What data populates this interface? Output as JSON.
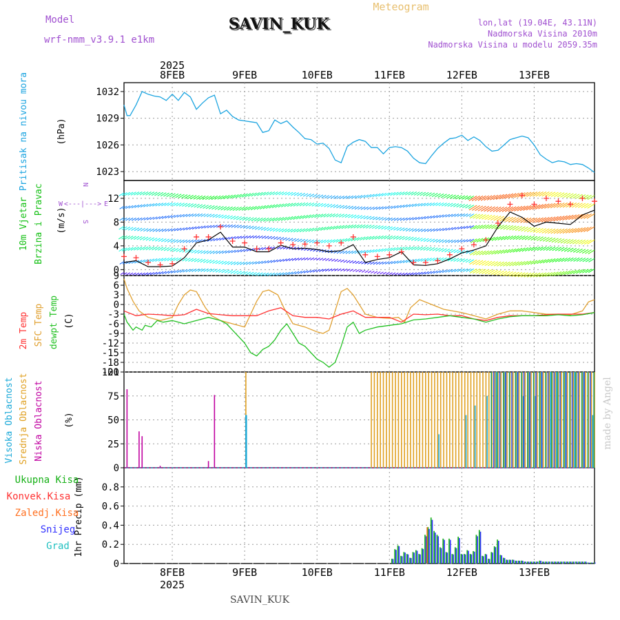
{
  "header": {
    "model_label": "Model",
    "model_value": "wrf-nmm_v3.9.1 e1km",
    "station": "SAVIN_KUK",
    "meteogram": "Meteogram",
    "lonlat": "lon,lat (19.04E, 43.11N)",
    "elevation": "Nadmorska Visina 2010m",
    "model_elevation": "Nadmorska Visina u modelu 2059.35m",
    "footer_station": "SAVIN_KUK",
    "credit": "made by Angel"
  },
  "colors": {
    "pressure": "#1ba4e0",
    "wind_axis": "#15c015",
    "temp2m": "#ff3030",
    "sfc": "#e0a030",
    "dew": "#20c020",
    "vis": "#19a8d8",
    "sred": "#e0a020",
    "nisk": "#c000a0",
    "ukupna": "#15b015",
    "konv": "#ff3030",
    "zaled": "#ff7020",
    "snijeg": "#3030ff",
    "grad": "#20c0c0",
    "credit": "#c8c8c8"
  },
  "chart_data": {
    "time_axis": {
      "year": "2025",
      "days": [
        "8FEB",
        "9FEB",
        "10FEB",
        "11FEB",
        "12FEB",
        "13FEB"
      ],
      "start_hour": -16,
      "end_hour": 140
    },
    "panels": [
      {
        "id": "pressure",
        "type": "line",
        "ylabel": "Pritisak na nivou mora",
        "unit": "(hPa)",
        "ylim": [
          1022,
          1033
        ],
        "yticks": [
          1023,
          1026,
          1029,
          1032
        ],
        "series": [
          {
            "key": "mslp",
            "x": [
              -16,
              -15,
              -14,
              -12,
              -10,
              -8,
              -6,
              -4,
              -2,
              0,
              2,
              4,
              6,
              8,
              10,
              12,
              14,
              16,
              18,
              20,
              22,
              24,
              26,
              28,
              30,
              32,
              34,
              36,
              38,
              40,
              42,
              44,
              46,
              48,
              50,
              52,
              54,
              56,
              58,
              60,
              62,
              64,
              66,
              68,
              70,
              72,
              74,
              76,
              78,
              80,
              82,
              84,
              86,
              88,
              90,
              92,
              94,
              96,
              98,
              100,
              102,
              104,
              106,
              108,
              110,
              112,
              114,
              116,
              118,
              120,
              122,
              124,
              126,
              128,
              130,
              132,
              134,
              136,
              138,
              140
            ],
            "y": [
              1030.5,
              1029.3,
              1029.3,
              1030.5,
              1032,
              1031.7,
              1031.5,
              1031.4,
              1031,
              1031.7,
              1031.0,
              1031.9,
              1031.4,
              1030.0,
              1030.7,
              1031.3,
              1031.6,
              1029.5,
              1029.9,
              1029.2,
              1028.8,
              1028.7,
              1028.6,
              1028.5,
              1027.4,
              1027.6,
              1028.8,
              1028.4,
              1028.7,
              1028.0,
              1027.4,
              1026.7,
              1026.6,
              1026.1,
              1026.2,
              1025.6,
              1024.3,
              1024.0,
              1025.8,
              1026.3,
              1026.6,
              1026.4,
              1025.7,
              1025.7,
              1025.0,
              1025.7,
              1025.8,
              1025.7,
              1025.3,
              1024.5,
              1024.0,
              1023.9,
              1024.8,
              1025.6,
              1026.2,
              1026.7,
              1026.8,
              1027.1,
              1026.5,
              1026.9,
              1026.5,
              1025.8,
              1025.3,
              1025.4,
              1026.0,
              1026.6,
              1026.8,
              1027.0,
              1026.8,
              1026.0,
              1024.9,
              1024.4,
              1024.0,
              1024.2,
              1024.1,
              1023.8,
              1023.9,
              1023.8,
              1023.4,
              1022.9
            ]
          }
        ]
      },
      {
        "id": "wind",
        "type": "line",
        "ylabel": [
          "10m Vjetar",
          "Brzina i Pravac"
        ],
        "unit": "(m/s)",
        "compass": [
          "N",
          "W",
          "<---|--->",
          "E",
          "S"
        ],
        "ylim": [
          -1,
          15
        ],
        "yticks": [
          0,
          4,
          8,
          12
        ],
        "series": [
          {
            "key": "speed",
            "x": [
              -16,
              -12,
              -8,
              -4,
              0,
              4,
              8,
              12,
              16,
              20,
              24,
              28,
              32,
              36,
              40,
              44,
              48,
              52,
              56,
              60,
              64,
              68,
              72,
              76,
              80,
              84,
              88,
              92,
              96,
              100,
              104,
              108,
              112,
              116,
              120,
              124,
              128,
              132,
              136,
              140
            ],
            "y": [
              1.2,
              1.5,
              0.5,
              0.5,
              0.6,
              2.0,
              4.5,
              5.0,
              6.3,
              3.8,
              3.8,
              3.0,
              3.0,
              4.1,
              3.5,
              3.6,
              3.4,
              3.0,
              3.2,
              4.2,
              1.2,
              1.7,
              2.0,
              3.0,
              0.8,
              0.7,
              1.0,
              1.8,
              2.8,
              3.3,
              4.0,
              7.2,
              9.7,
              8.8,
              7.3,
              8.0,
              7.8,
              7.6,
              9.2,
              10.0
            ]
          },
          {
            "key": "gust",
            "x": [
              -16,
              -12,
              -8,
              -4,
              0,
              4,
              8,
              12,
              16,
              20,
              24,
              28,
              32,
              36,
              40,
              44,
              48,
              52,
              56,
              60,
              64,
              68,
              72,
              76,
              80,
              84,
              88,
              92,
              96,
              100,
              104,
              108,
              112,
              116,
              120,
              124,
              128,
              132,
              136,
              140
            ],
            "y": [
              2.2,
              2.0,
              1.2,
              0.8,
              1.0,
              3.5,
              5.5,
              5.5,
              7.2,
              4.8,
              4.5,
              3.5,
              3.5,
              4.5,
              4.2,
              4.3,
              4.5,
              4.0,
              4.5,
              5.5,
              2.5,
              2.2,
              2.5,
              3.0,
              1.2,
              1.2,
              1.5,
              2.5,
              3.5,
              4.2,
              5.0,
              7.8,
              11.0,
              12.5,
              11.0,
              12.0,
              11.5,
              11.0,
              12.0,
              11.5
            ]
          }
        ]
      },
      {
        "id": "temperature",
        "type": "line",
        "ylabel": [
          "2m Temp",
          "SFC Temp",
          "dewpt Temp"
        ],
        "unit": "(C)",
        "ylim": [
          -21,
          9
        ],
        "yticks": [
          -21,
          -18,
          -15,
          -12,
          -9,
          -6,
          -3,
          0,
          3,
          6,
          9
        ],
        "series": [
          {
            "key": "t2m",
            "x": [
              -16,
              -12,
              -8,
              -4,
              0,
              4,
              8,
              12,
              16,
              20,
              24,
              28,
              32,
              36,
              40,
              44,
              48,
              52,
              56,
              60,
              64,
              68,
              72,
              76,
              80,
              84,
              88,
              92,
              96,
              100,
              104,
              108,
              112,
              116,
              120,
              124,
              128,
              132,
              136,
              140
            ],
            "y": [
              -2.0,
              -3.5,
              -3.0,
              -3.2,
              -3.5,
              -3.2,
              -1.5,
              -2.8,
              -3.2,
              -3.5,
              -3.5,
              -3.5,
              -2.0,
              -1.0,
              -3.5,
              -4.0,
              -4.0,
              -4.5,
              -3.0,
              -2.0,
              -4.0,
              -4.0,
              -4.0,
              -5.5,
              -3.0,
              -3.2,
              -3.0,
              -3.5,
              -3.5,
              -4.5,
              -5.0,
              -4.0,
              -3.5,
              -3.5,
              -3.5,
              -3.2,
              -3.0,
              -3.0,
              -3.0,
              -2.5
            ]
          },
          {
            "key": "sfc",
            "x": [
              -16,
              -15,
              -13,
              -11,
              -8,
              -4,
              0,
              2,
              4,
              6,
              8,
              11,
              13,
              16,
              20,
              24,
              26,
              28,
              30,
              32,
              35,
              37,
              40,
              44,
              48,
              50,
              52,
              54,
              56,
              58,
              60,
              64,
              68,
              70,
              72,
              75,
              77,
              79,
              82,
              86,
              90,
              96,
              100,
              104,
              108,
              112,
              116,
              120,
              124,
              128,
              132,
              136,
              138,
              140
            ],
            "y": [
              8,
              5,
              1,
              -2,
              -4,
              -5,
              -4,
              0,
              3,
              4.5,
              4,
              -1,
              -3.5,
              -5,
              -6,
              -7,
              -3,
              1,
              4,
              4.5,
              3,
              -1,
              -6,
              -7,
              -8.5,
              -9,
              -8,
              -2,
              4,
              5,
              3,
              -3,
              -4,
              -4.2,
              -4.3,
              -4,
              -5.5,
              -1,
              1.5,
              0,
              -1.5,
              -2.5,
              -3.5,
              -4.5,
              -3,
              -2,
              -2,
              -2.5,
              -3,
              -3,
              -3.2,
              -2,
              0.8,
              1.5
            ]
          },
          {
            "key": "dewpt",
            "x": [
              -16,
              -15,
              -13,
              -12,
              -10,
              -9,
              -7,
              -5,
              -3,
              0,
              4,
              8,
              12,
              16,
              18,
              20,
              22,
              24,
              26,
              28,
              30,
              32,
              34,
              36,
              38,
              40,
              42,
              44,
              46,
              48,
              50,
              52,
              54,
              56,
              58,
              60,
              62,
              64,
              68,
              72,
              76,
              80,
              84,
              88,
              92,
              96,
              100,
              104,
              108,
              112,
              116,
              120,
              124,
              128,
              132,
              136,
              140
            ],
            "y": [
              -3,
              -5.5,
              -8,
              -7,
              -8,
              -6.5,
              -7,
              -5,
              -5.5,
              -5,
              -6,
              -5,
              -4,
              -5,
              -6,
              -8,
              -10,
              -12,
              -15,
              -16,
              -14,
              -13,
              -11,
              -8,
              -6,
              -9,
              -12,
              -13,
              -15,
              -17,
              -18,
              -19.5,
              -18,
              -13,
              -7,
              -5.5,
              -9,
              -8,
              -7,
              -6.5,
              -6,
              -4.8,
              -4.5,
              -4,
              -3.5,
              -4,
              -4.5,
              -5.5,
              -4.5,
              -3.8,
              -3.5,
              -3.5,
              -3.5,
              -3.2,
              -3.5,
              -3.2,
              -2.5
            ]
          }
        ]
      },
      {
        "id": "clouds",
        "type": "bar",
        "ylabel": [
          "Visoka Oblacnost",
          "Srednja Oblacnost",
          "Niska Oblacnost"
        ],
        "unit": "(%)",
        "ylim": [
          0,
          100
        ],
        "yticks": [
          0,
          25,
          50,
          75,
          100
        ],
        "series": [
          {
            "key": "niska",
            "x": [
              -15,
              -11,
              -10,
              -4,
              12,
              14
            ],
            "y": [
              82,
              38,
              33,
              2,
              7,
              76
            ]
          },
          {
            "key": "visoka",
            "x": [
              24,
              24.2,
              88,
              97,
              100,
              104,
              107,
              110,
              114,
              116,
              118,
              120,
              122,
              125,
              127,
              130,
              133,
              136,
              139
            ],
            "y": [
              55,
              55,
              35,
              55,
              65,
              75,
              100,
              100,
              100,
              75,
              100,
              75,
              100,
              100,
              100,
              100,
              100,
              100,
              55
            ]
          },
          {
            "key": "srednja_lo",
            "x": [
              24.4
            ],
            "y": [
              100
            ]
          },
          {
            "key": "srednja_start",
            "x": [
              66
            ],
            "y": [
              100
            ]
          },
          {
            "key": "srednja_end",
            "x": [
              140
            ],
            "y": [
              100
            ]
          }
        ]
      },
      {
        "id": "precip",
        "type": "bar",
        "ylabel": "1hr Precip",
        "unit": "(mm)",
        "ylim": [
          0,
          1
        ],
        "yticks": [
          0,
          0.2,
          0.4,
          0.6,
          0.8
        ],
        "legend": [
          "Ukupna Kisa",
          "Konvek.Kisa",
          "Zaledj.Kisa",
          "Snijeg",
          "Grad"
        ],
        "series": [
          {
            "key": "precip",
            "x": [
              73,
              74,
              75,
              76,
              77,
              78,
              79,
              80,
              81,
              82,
              83,
              84,
              85,
              86,
              87,
              88,
              89,
              90,
              91,
              92,
              93,
              94,
              95,
              96,
              97,
              98,
              99,
              100,
              101,
              102,
              103,
              104,
              105,
              106,
              107,
              108,
              109,
              110,
              111,
              112,
              113,
              114,
              115,
              116,
              117,
              118,
              119,
              120,
              121,
              122,
              123,
              124,
              125,
              126,
              127,
              128,
              129,
              130,
              131,
              132,
              133,
              134,
              135,
              136,
              137,
              138,
              139,
              140
            ],
            "y": [
              0.05,
              0.15,
              0.19,
              0.08,
              0.12,
              0.1,
              0.06,
              0.12,
              0.14,
              0.1,
              0.16,
              0.3,
              0.38,
              0.48,
              0.34,
              0.3,
              0.17,
              0.26,
              0.12,
              0.26,
              0.1,
              0.17,
              0.28,
              0.1,
              0.1,
              0.14,
              0.1,
              0.13,
              0.3,
              0.35,
              0.08,
              0.1,
              0.05,
              0.12,
              0.18,
              0.25,
              0.09,
              0.06,
              0.04,
              0.04,
              0.04,
              0.03,
              0.03,
              0.03,
              0.02,
              0.02,
              0.02,
              0.02,
              0.02,
              0.03,
              0.02,
              0.02,
              0.02,
              0.02,
              0.02,
              0.02,
              0.02,
              0.02,
              0.02,
              0.02,
              0.02,
              0.02,
              0.02,
              0.02,
              0.02,
              0.01,
              0.01,
              0.01
            ]
          }
        ]
      }
    ]
  }
}
